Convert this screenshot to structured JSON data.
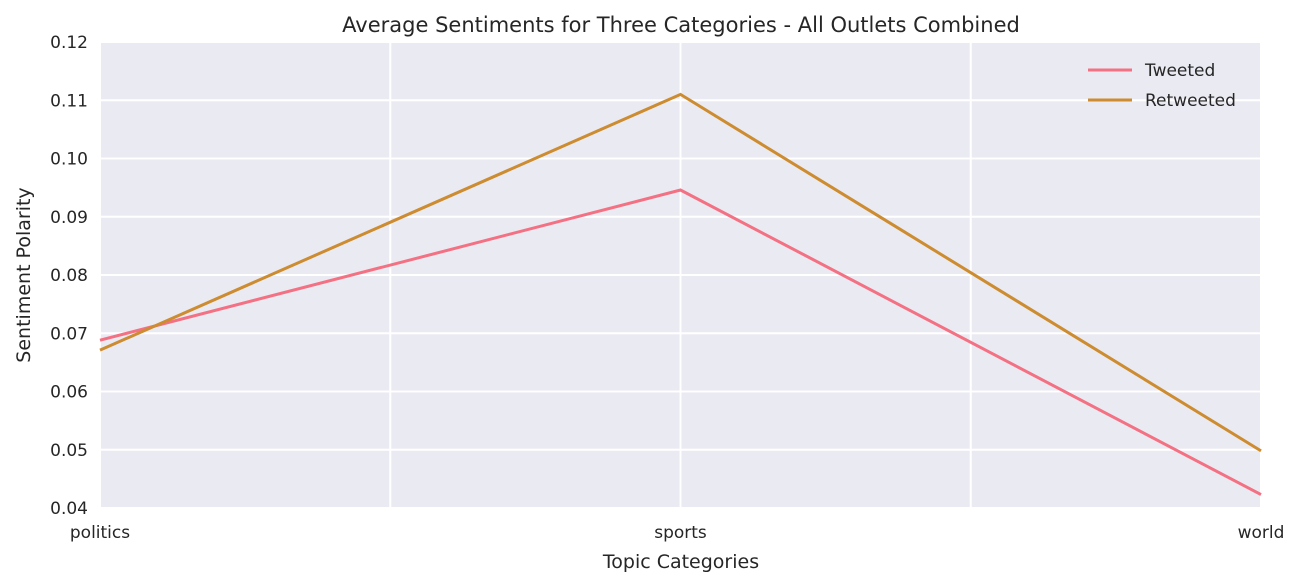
{
  "chart_data": {
    "type": "line",
    "title": "Average Sentiments for Three Categories - All Outlets Combined",
    "xlabel": "Topic Categories",
    "ylabel": "Sentiment Polarity",
    "categories": [
      "politics",
      "sports",
      "world"
    ],
    "ylim": [
      0.04,
      0.12
    ],
    "yticks": [
      "0.04",
      "0.05",
      "0.06",
      "0.07",
      "0.08",
      "0.09",
      "0.10",
      "0.11",
      "0.12"
    ],
    "grid": true,
    "legend_position": "top-right",
    "background_color": "#EAEAF2",
    "series": [
      {
        "name": "Tweeted",
        "color": "#F37183",
        "values": [
          0.0688,
          0.0946,
          0.0423
        ]
      },
      {
        "name": "Retweeted",
        "color": "#CD8C30",
        "values": [
          0.0671,
          0.111,
          0.0498
        ]
      }
    ]
  }
}
